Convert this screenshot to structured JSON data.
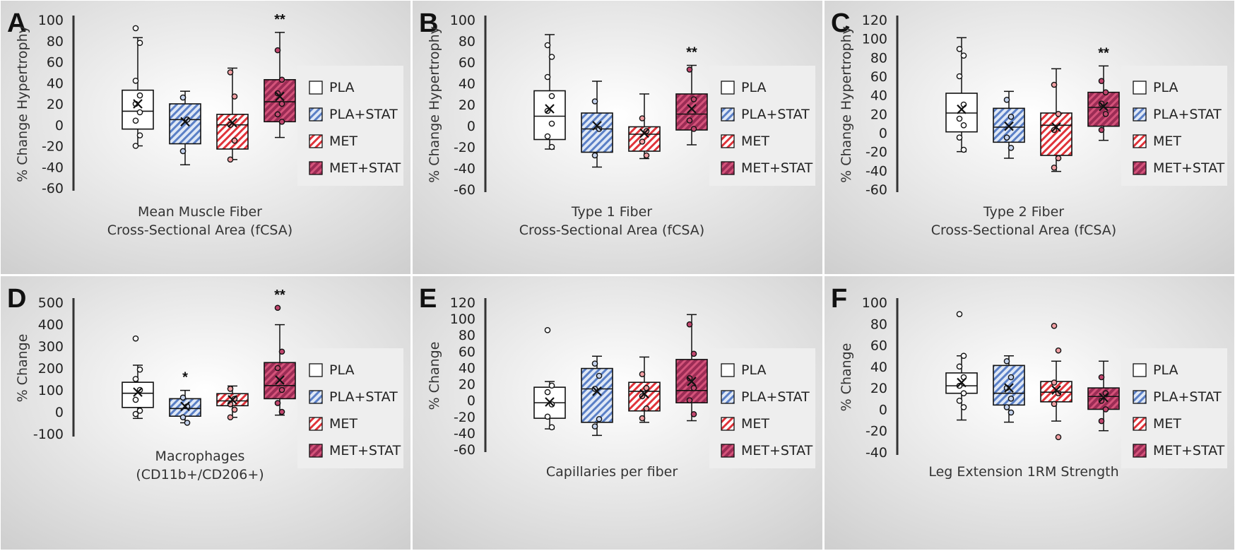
{
  "colors": {
    "PLA_fill": "#ffffff",
    "PLA_STAT_base": "#dfe8f6",
    "PLA_STAT_stripe": "#5a7fc6",
    "MET_base": "#ffffff",
    "MET_stripe": "#e0333a",
    "MET_STAT_base": "#9b2c55",
    "MET_STAT_stripe": "#d4537a",
    "outline": "#111111",
    "panel_bg_center": "#ffffff",
    "panel_bg_edge": "#cfcfcf",
    "legend_bg": "#eeeeee"
  },
  "legend": [
    "PLA",
    "PLA+STAT",
    "MET",
    "MET+STAT"
  ],
  "chart_data": [
    {
      "type": "box",
      "letter": "A",
      "ylabel": "% Change Hypertrophy",
      "xlabel": [
        "Mean Muscle Fiber",
        "Cross-Sectional Area (fCSA)"
      ],
      "ylim": [
        -60,
        100
      ],
      "ticks": [
        100,
        80,
        60,
        40,
        20,
        0,
        -20,
        -40,
        -60
      ],
      "series": [
        {
          "name": "PLA",
          "min": -20,
          "q1": -4,
          "median": 13,
          "q3": 33,
          "max": 83,
          "mean": 20,
          "points": [
            92,
            78,
            42,
            28,
            20,
            12,
            4,
            -10,
            -20
          ],
          "sig": ""
        },
        {
          "name": "PLA+STAT",
          "min": -38,
          "q1": -18,
          "median": 5,
          "q3": 20,
          "max": 32,
          "mean": 3,
          "points": [
            26,
            5,
            -25
          ],
          "sig": ""
        },
        {
          "name": "MET",
          "min": -33,
          "q1": -23,
          "median": 0,
          "q3": 10,
          "max": 54,
          "mean": 2,
          "points": [
            50,
            27,
            0,
            -15,
            -33
          ],
          "sig": ""
        },
        {
          "name": "MET+STAT",
          "min": -12,
          "q1": 3,
          "median": 22,
          "q3": 43,
          "max": 88,
          "mean": 27,
          "points": [
            71,
            43,
            30,
            20,
            10,
            3
          ],
          "sig": "**"
        }
      ]
    },
    {
      "type": "box",
      "letter": "B",
      "ylabel": "% Change Hypertrophy",
      "xlabel": [
        "Type 1 Fiber",
        "Cross-Sectional Area (fCSA)"
      ],
      "ylim": [
        -60,
        100
      ],
      "ticks": [
        100,
        80,
        60,
        40,
        20,
        0,
        -20,
        -40,
        -60
      ],
      "series": [
        {
          "name": "PLA",
          "min": -22,
          "q1": -13,
          "median": 9,
          "q3": 33,
          "max": 86,
          "mean": 16,
          "points": [
            76,
            65,
            46,
            28,
            14,
            2,
            -10,
            -20
          ],
          "sig": ""
        },
        {
          "name": "PLA+STAT",
          "min": -39,
          "q1": -25,
          "median": -3,
          "q3": 12,
          "max": 42,
          "mean": 0,
          "points": [
            23,
            -3,
            -28
          ],
          "sig": ""
        },
        {
          "name": "MET",
          "min": -31,
          "q1": -24,
          "median": -8,
          "q3": -1,
          "max": 30,
          "mean": -7,
          "points": [
            7,
            -5,
            -15,
            -28
          ],
          "sig": ""
        },
        {
          "name": "MET+STAT",
          "min": -18,
          "q1": -4,
          "median": 11,
          "q3": 30,
          "max": 57,
          "mean": 16,
          "points": [
            53,
            25,
            5,
            -3
          ],
          "sig": "**"
        }
      ]
    },
    {
      "type": "box",
      "letter": "C",
      "ylabel": "% Change Hypertrophy",
      "xlabel": [
        "Type 2 Fiber",
        "Cross-Sectional Area (fCSA)"
      ],
      "ylim": [
        -60,
        120
      ],
      "ticks": [
        120,
        100,
        80,
        60,
        40,
        20,
        0,
        -20,
        -40,
        -60
      ],
      "series": [
        {
          "name": "PLA",
          "min": -20,
          "q1": 1,
          "median": 21,
          "q3": 42,
          "max": 101,
          "mean": 25,
          "points": [
            89,
            82,
            60,
            30,
            15,
            8,
            -5,
            -18
          ],
          "sig": ""
        },
        {
          "name": "PLA+STAT",
          "min": -27,
          "q1": -10,
          "median": 6,
          "q3": 26,
          "max": 44,
          "mean": 7,
          "points": [
            35,
            17,
            -5,
            -16
          ],
          "sig": ""
        },
        {
          "name": "MET",
          "min": -41,
          "q1": -24,
          "median": 8,
          "q3": 21,
          "max": 68,
          "mean": 6,
          "points": [
            51,
            20,
            3,
            -27,
            -37
          ],
          "sig": ""
        },
        {
          "name": "MET+STAT",
          "min": -8,
          "q1": 7,
          "median": 27,
          "q3": 43,
          "max": 71,
          "mean": 28,
          "points": [
            55,
            43,
            31,
            20,
            3
          ],
          "sig": "**"
        }
      ]
    },
    {
      "type": "box",
      "letter": "D",
      "ylabel": "% Change",
      "xlabel": [
        "Macrophages",
        "(CD11b+/CD206+)"
      ],
      "ylim": [
        -100,
        500
      ],
      "ticks": [
        500,
        400,
        300,
        200,
        100,
        0,
        -100
      ],
      "series": [
        {
          "name": "PLA",
          "min": -30,
          "q1": 20,
          "median": 85,
          "q3": 135,
          "max": 213,
          "mean": 90,
          "points": [
            335,
            193,
            150,
            100,
            55,
            5,
            -10
          ],
          "sig": ""
        },
        {
          "name": "PLA+STAT",
          "min": -50,
          "q1": -20,
          "median": 15,
          "q3": 60,
          "max": 98,
          "mean": 25,
          "points": [
            65,
            25,
            -25,
            -50
          ],
          "sig": "*"
        },
        {
          "name": "MET",
          "min": -25,
          "q1": 28,
          "median": 50,
          "q3": 83,
          "max": 118,
          "mean": 55,
          "points": [
            105,
            60,
            35,
            10,
            -25
          ],
          "sig": ""
        },
        {
          "name": "MET+STAT",
          "min": -15,
          "q1": 60,
          "median": 120,
          "q3": 225,
          "max": 398,
          "mean": 145,
          "points": [
            475,
            275,
            200,
            100,
            40,
            0
          ],
          "sig": "**"
        }
      ]
    },
    {
      "type": "box",
      "letter": "E",
      "ylabel": "% Change",
      "xlabel": [
        "Capillaries per fiber"
      ],
      "ylim": [
        -60,
        120
      ],
      "ticks": [
        120,
        100,
        80,
        60,
        40,
        20,
        0,
        -20,
        -40,
        -60
      ],
      "series": [
        {
          "name": "PLA",
          "min": -35,
          "q1": -22,
          "median": -3,
          "q3": 16,
          "max": 23,
          "mean": -2,
          "points": [
            86,
            18,
            10,
            -5,
            -20,
            -33
          ],
          "sig": ""
        },
        {
          "name": "PLA+STAT",
          "min": -43,
          "q1": -27,
          "median": 14,
          "q3": 39,
          "max": 54,
          "mean": 11,
          "points": [
            45,
            30,
            14,
            -23,
            -32
          ],
          "sig": ""
        },
        {
          "name": "MET",
          "min": -27,
          "q1": -13,
          "median": 11,
          "q3": 22,
          "max": 53,
          "mean": 8,
          "points": [
            32,
            15,
            5,
            -10,
            -22
          ],
          "sig": ""
        },
        {
          "name": "MET+STAT",
          "min": -25,
          "q1": -3,
          "median": 12,
          "q3": 50,
          "max": 105,
          "mean": 23,
          "points": [
            93,
            57,
            27,
            15,
            0,
            -17
          ],
          "sig": ""
        }
      ]
    },
    {
      "type": "box",
      "letter": "F",
      "ylabel": "% Change",
      "xlabel": [
        "Leg Extension 1RM Strength"
      ],
      "ylim": [
        -40,
        100
      ],
      "ticks": [
        100,
        80,
        60,
        40,
        20,
        0,
        -20,
        -40
      ],
      "series": [
        {
          "name": "PLA",
          "min": -10,
          "q1": 15,
          "median": 22,
          "q3": 34,
          "max": 50,
          "mean": 25,
          "points": [
            89,
            50,
            40,
            30,
            22,
            15,
            8,
            2
          ],
          "sig": ""
        },
        {
          "name": "PLA+STAT",
          "min": -12,
          "q1": 4,
          "median": 15,
          "q3": 41,
          "max": 50,
          "mean": 20,
          "points": [
            45,
            30,
            20,
            10,
            2,
            -3
          ],
          "sig": ""
        },
        {
          "name": "MET",
          "min": -11,
          "q1": 7,
          "median": 16,
          "q3": 26,
          "max": 45,
          "mean": 18,
          "points": [
            78,
            55,
            25,
            15,
            5,
            -26
          ],
          "sig": ""
        },
        {
          "name": "MET+STAT",
          "min": -20,
          "q1": 0,
          "median": 12,
          "q3": 20,
          "max": 45,
          "mean": 11,
          "points": [
            30,
            15,
            8,
            0,
            -11
          ],
          "sig": ""
        }
      ]
    }
  ]
}
